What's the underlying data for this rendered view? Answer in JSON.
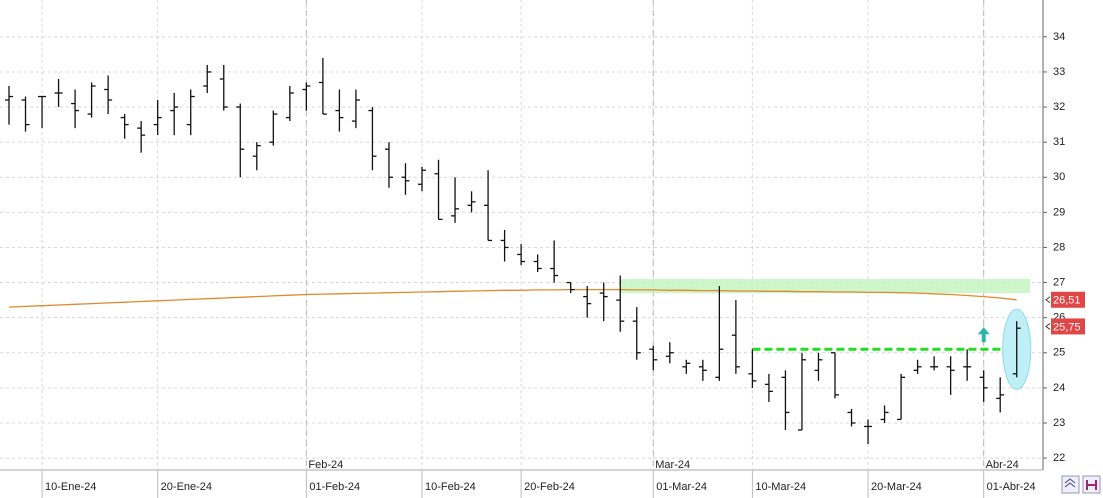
{
  "chart_data": {
    "type": "ohlc",
    "categories": [
      null,
      null,
      "10-Ene-24",
      null,
      null,
      null,
      null,
      null,
      null,
      "20-Ene-24",
      null,
      null,
      null,
      null,
      null,
      null,
      null,
      null,
      "01-Feb-24",
      null,
      null,
      null,
      null,
      null,
      null,
      "10-Feb-24",
      null,
      null,
      null,
      null,
      null,
      "20-Feb-24",
      null,
      null,
      null,
      null,
      null,
      null,
      null,
      "01-Mar-24",
      null,
      null,
      null,
      null,
      null,
      "10-Mar-24",
      null,
      null,
      null,
      null,
      null,
      null,
      "20-Mar-24",
      null,
      null,
      null,
      null,
      null,
      null,
      "01-Abr-24",
      null,
      null
    ],
    "months": [
      null,
      null,
      null,
      null,
      null,
      null,
      null,
      null,
      null,
      null,
      null,
      null,
      null,
      null,
      null,
      null,
      null,
      null,
      "Feb-24",
      null,
      null,
      null,
      null,
      null,
      null,
      null,
      null,
      null,
      null,
      null,
      null,
      null,
      null,
      null,
      null,
      null,
      null,
      null,
      null,
      "Mar-24",
      null,
      null,
      null,
      null,
      null,
      null,
      null,
      null,
      null,
      null,
      null,
      null,
      null,
      null,
      null,
      null,
      null,
      null,
      null,
      "Abr-24",
      null,
      null
    ],
    "open": [
      32.2,
      32.2,
      32.3,
      32.4,
      32.1,
      31.8,
      32.5,
      31.7,
      31.4,
      31.5,
      31.9,
      31.5,
      32.6,
      32.8,
      32.0,
      30.6,
      31.0,
      31.7,
      32.5,
      32.7,
      31.9,
      31.6,
      31.9,
      30.8,
      30.0,
      29.8,
      30.1,
      28.9,
      29.2,
      29.2,
      28.2,
      27.8,
      27.6,
      27.4,
      27.0,
      26.6,
      26.7,
      26.5,
      25.9,
      25.1,
      24.9,
      24.6,
      24.6,
      24.3,
      25.5,
      24.4,
      24.1,
      24.3,
      22.8,
      24.5,
      25.0,
      23.3,
      22.9,
      23.1,
      23.1,
      24.5,
      24.6,
      24.6,
      24.6,
      24.3,
      23.7,
      24.4
    ],
    "high": [
      32.6,
      32.3,
      32.3,
      32.8,
      32.5,
      32.7,
      32.9,
      31.8,
      31.6,
      32.2,
      32.4,
      32.5,
      33.2,
      33.2,
      32.1,
      31.0,
      31.9,
      32.6,
      32.7,
      33.4,
      32.5,
      32.5,
      32.0,
      31.0,
      30.4,
      30.3,
      30.5,
      30.0,
      29.6,
      30.2,
      28.5,
      28.1,
      27.8,
      28.2,
      27.0,
      26.9,
      27.0,
      27.2,
      26.3,
      25.2,
      25.3,
      24.8,
      24.8,
      26.9,
      26.5,
      25.1,
      24.4,
      24.5,
      25.0,
      25.0,
      25.0,
      23.4,
      23.1,
      23.5,
      24.4,
      24.8,
      24.9,
      24.9,
      25.1,
      24.5,
      24.3,
      25.9
    ],
    "low": [
      31.5,
      31.3,
      31.4,
      32.0,
      31.4,
      31.7,
      31.8,
      31.1,
      30.7,
      31.2,
      31.2,
      31.2,
      32.4,
      31.9,
      30.0,
      30.2,
      30.9,
      31.6,
      31.9,
      31.8,
      31.3,
      31.4,
      30.2,
      29.7,
      29.5,
      29.6,
      28.8,
      28.7,
      29.0,
      28.2,
      27.6,
      27.5,
      27.3,
      27.0,
      26.7,
      26.0,
      25.9,
      25.6,
      24.8,
      24.5,
      24.7,
      24.4,
      24.2,
      24.2,
      24.4,
      24.0,
      23.6,
      22.8,
      22.8,
      24.2,
      23.7,
      22.9,
      22.4,
      23.0,
      23.1,
      24.4,
      24.5,
      23.8,
      24.2,
      23.6,
      23.3,
      24.3
    ],
    "close": [
      32.3,
      31.5,
      32.3,
      32.4,
      31.9,
      32.6,
      32.2,
      31.5,
      31.2,
      31.7,
      32.0,
      32.3,
      33.0,
      32.0,
      30.8,
      30.9,
      31.8,
      32.4,
      32.6,
      31.8,
      31.7,
      32.2,
      30.6,
      30.0,
      29.9,
      30.2,
      28.8,
      29.1,
      29.3,
      28.2,
      28.0,
      27.6,
      27.4,
      27.2,
      26.8,
      26.4,
      26.6,
      25.9,
      25.0,
      24.8,
      25.0,
      24.7,
      24.5,
      25.1,
      24.6,
      24.2,
      23.9,
      23.3,
      24.8,
      24.8,
      23.8,
      23.0,
      22.9,
      23.3,
      24.3,
      24.6,
      24.6,
      24.5,
      24.6,
      24.0,
      23.8,
      25.7
    ],
    "average": {
      "color": "#e08a2c",
      "values": [
        26.3,
        26.32,
        26.34,
        26.36,
        26.38,
        26.4,
        26.42,
        26.44,
        26.46,
        26.48,
        26.5,
        26.52,
        26.54,
        26.56,
        26.58,
        26.6,
        26.62,
        26.64,
        26.66,
        26.67,
        26.68,
        26.69,
        26.7,
        26.71,
        26.72,
        26.73,
        26.74,
        26.75,
        26.76,
        26.77,
        26.78,
        26.78,
        26.79,
        26.79,
        26.8,
        26.8,
        26.8,
        26.8,
        26.79,
        26.79,
        26.78,
        26.78,
        26.77,
        26.77,
        26.76,
        26.76,
        26.75,
        26.75,
        26.74,
        26.74,
        26.73,
        26.73,
        26.72,
        26.72,
        26.71,
        26.7,
        26.68,
        26.66,
        26.63,
        26.6,
        26.56,
        26.51
      ],
      "last": 26.51,
      "last_label": "26,51"
    },
    "price": {
      "last": 25.75,
      "last_label": "25,75"
    },
    "zone": {
      "from": 26.7,
      "to": 27.1,
      "start": 37,
      "color": "#c8f5c4"
    },
    "support": {
      "value": 25.1,
      "start": 45,
      "color": "#22dd22"
    },
    "ylim": [
      21.66,
      35.05
    ],
    "yticks": [
      22,
      23,
      24,
      25,
      26,
      27,
      28,
      29,
      30,
      31,
      32,
      33,
      34
    ],
    "grid": true
  }
}
